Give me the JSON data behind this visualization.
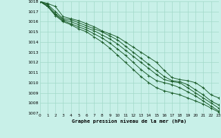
{
  "title": "Graphe pression niveau de la mer (hPa)",
  "background_color": "#c8f0e8",
  "grid_color": "#a0d8c8",
  "line_color": "#1a5c2a",
  "x_min": 0,
  "x_max": 23,
  "y_min": 1007,
  "y_max": 1018,
  "series": [
    [
      1018,
      1017.8,
      1017.5,
      1016.5,
      1016.3,
      1016.1,
      1015.8,
      1015.5,
      1015.1,
      1014.8,
      1014.5,
      1014.0,
      1013.5,
      1013.0,
      1012.5,
      1012.0,
      1011.2,
      1010.5,
      1010.3,
      1010.2,
      1010.0,
      1009.5,
      1008.8,
      1008.5
    ],
    [
      1018,
      1017.7,
      1017.0,
      1016.3,
      1016.2,
      1015.9,
      1015.6,
      1015.3,
      1015.0,
      1014.6,
      1014.2,
      1013.6,
      1013.0,
      1012.4,
      1011.8,
      1011.2,
      1010.6,
      1010.2,
      1010.1,
      1009.8,
      1009.3,
      1008.8,
      1008.2,
      1007.8
    ],
    [
      1018,
      1017.6,
      1016.8,
      1016.2,
      1016.0,
      1015.7,
      1015.4,
      1015.1,
      1014.7,
      1014.3,
      1013.8,
      1013.2,
      1012.6,
      1012.0,
      1011.4,
      1010.8,
      1010.3,
      1010.1,
      1010.0,
      1009.5,
      1009.0,
      1008.5,
      1008.0,
      1007.5
    ],
    [
      1018,
      1017.5,
      1016.7,
      1016.1,
      1015.8,
      1015.5,
      1015.2,
      1014.8,
      1014.4,
      1013.9,
      1013.3,
      1012.7,
      1012.0,
      1011.3,
      1010.7,
      1010.2,
      1010.0,
      1009.8,
      1009.5,
      1009.1,
      1008.7,
      1008.2,
      1007.7,
      1007.2
    ],
    [
      1018,
      1017.5,
      1016.6,
      1016.0,
      1015.7,
      1015.3,
      1015.0,
      1014.5,
      1014.0,
      1013.4,
      1012.7,
      1012.0,
      1011.3,
      1010.6,
      1010.0,
      1009.5,
      1009.2,
      1009.0,
      1008.8,
      1008.5,
      1008.2,
      1007.9,
      1007.5,
      1007.1
    ]
  ]
}
